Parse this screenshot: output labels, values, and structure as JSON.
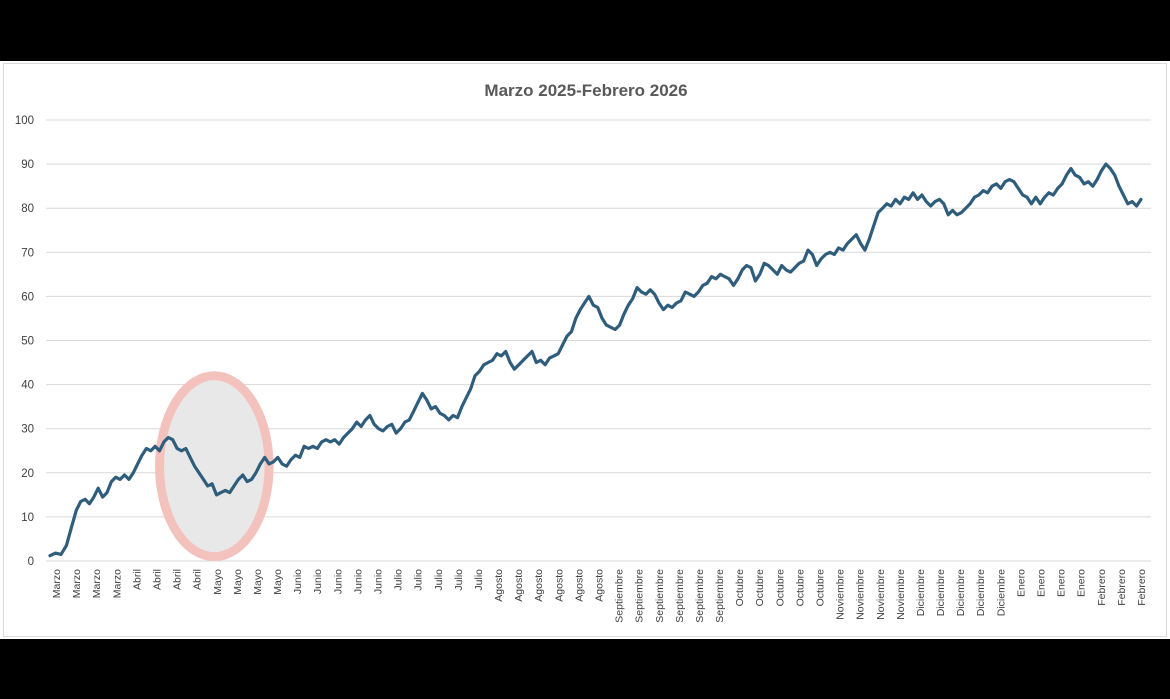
{
  "chart_data": {
    "type": "line",
    "title": "Marzo 2025-Febrero 2026",
    "xlabel": "",
    "ylabel": "",
    "ylim": [
      0,
      100
    ],
    "y_ticks": [
      0,
      10,
      20,
      30,
      40,
      50,
      60,
      70,
      80,
      90,
      100
    ],
    "grid": "horizontal",
    "legend": "none",
    "colors": {
      "line": "#2f5d7c",
      "grid": "#d9d9d9",
      "highlight_fill": "#e8e8e8",
      "highlight_stroke": "#f4c2bd"
    },
    "highlight": {
      "shape": "ellipse",
      "x_from": 5,
      "x_to": 10,
      "y_from": 1,
      "y_to": 42
    },
    "categories": [
      "Marzo",
      "Marzo",
      "Marzo",
      "Marzo",
      "Abril",
      "Abril",
      "Abril",
      "Abril",
      "Mayo",
      "Mayo",
      "Mayo",
      "Mayo",
      "Junio",
      "Junio",
      "Junio",
      "Junio",
      "Junio",
      "Julio",
      "Julio",
      "Julio",
      "Julio",
      "Julio",
      "Agosto",
      "Agosto",
      "Agosto",
      "Agosto",
      "Agosto",
      "Agosto",
      "Septiembre",
      "Septiembre",
      "Septiembre",
      "Septiembre",
      "Septiembre",
      "Septiembre",
      "Octubre",
      "Octubre",
      "Octubre",
      "Octubre",
      "Octubre",
      "Noviembre",
      "Noviembre",
      "Noviembre",
      "Noviembre",
      "Diciembre",
      "Diciembre",
      "Diciembre",
      "Diciembre",
      "Diciembre",
      "Enero",
      "Enero",
      "Enero",
      "Enero",
      "Febrero",
      "Febrero",
      "Febrero"
    ],
    "series": [
      {
        "points": [
          [
            0.0,
            1.2
          ],
          [
            0.25,
            1.8
          ],
          [
            0.5,
            1.5
          ],
          [
            0.75,
            3.5
          ],
          [
            1.0,
            8.0
          ],
          [
            1.2,
            11.5
          ],
          [
            1.4,
            13.5
          ],
          [
            1.6,
            14.0
          ],
          [
            1.8,
            13.0
          ],
          [
            2.0,
            14.5
          ],
          [
            2.2,
            16.5
          ],
          [
            2.4,
            14.5
          ],
          [
            2.6,
            15.5
          ],
          [
            2.8,
            18.0
          ],
          [
            3.0,
            19.0
          ],
          [
            3.2,
            18.5
          ],
          [
            3.4,
            19.5
          ],
          [
            3.6,
            18.5
          ],
          [
            3.8,
            20.0
          ],
          [
            4.0,
            22.0
          ],
          [
            4.2,
            24.0
          ],
          [
            4.4,
            25.5
          ],
          [
            4.6,
            25.0
          ],
          [
            4.8,
            26.0
          ],
          [
            5.0,
            25.0
          ],
          [
            5.2,
            27.0
          ],
          [
            5.4,
            28.0
          ],
          [
            5.6,
            27.5
          ],
          [
            5.8,
            25.5
          ],
          [
            6.0,
            25.0
          ],
          [
            6.2,
            25.5
          ],
          [
            6.4,
            23.5
          ],
          [
            6.6,
            21.5
          ],
          [
            6.8,
            20.0
          ],
          [
            7.0,
            18.5
          ],
          [
            7.2,
            17.0
          ],
          [
            7.4,
            17.5
          ],
          [
            7.6,
            15.0
          ],
          [
            7.8,
            15.5
          ],
          [
            8.0,
            16.0
          ],
          [
            8.2,
            15.5
          ],
          [
            8.4,
            17.0
          ],
          [
            8.6,
            18.5
          ],
          [
            8.8,
            19.5
          ],
          [
            9.0,
            18.0
          ],
          [
            9.2,
            18.5
          ],
          [
            9.4,
            20.0
          ],
          [
            9.6,
            22.0
          ],
          [
            9.8,
            23.5
          ],
          [
            10.0,
            22.0
          ],
          [
            10.2,
            22.5
          ],
          [
            10.4,
            23.5
          ],
          [
            10.6,
            22.0
          ],
          [
            10.8,
            21.5
          ],
          [
            11.0,
            23.0
          ],
          [
            11.2,
            24.0
          ],
          [
            11.4,
            23.5
          ],
          [
            11.6,
            26.0
          ],
          [
            11.8,
            25.5
          ],
          [
            12.0,
            26.0
          ],
          [
            12.2,
            25.5
          ],
          [
            12.4,
            27.0
          ],
          [
            12.6,
            27.5
          ],
          [
            12.8,
            27.0
          ],
          [
            13.0,
            27.5
          ],
          [
            13.2,
            26.5
          ],
          [
            13.4,
            28.0
          ],
          [
            13.6,
            29.0
          ],
          [
            13.8,
            30.0
          ],
          [
            14.0,
            31.5
          ],
          [
            14.2,
            30.5
          ],
          [
            14.4,
            32.0
          ],
          [
            14.6,
            33.0
          ],
          [
            14.8,
            31.0
          ],
          [
            15.0,
            30.0
          ],
          [
            15.2,
            29.5
          ],
          [
            15.4,
            30.5
          ],
          [
            15.6,
            31.0
          ],
          [
            15.8,
            29.0
          ],
          [
            16.0,
            30.0
          ],
          [
            16.2,
            31.5
          ],
          [
            16.4,
            32.0
          ],
          [
            16.6,
            34.0
          ],
          [
            16.8,
            36.0
          ],
          [
            17.0,
            38.0
          ],
          [
            17.2,
            36.5
          ],
          [
            17.4,
            34.5
          ],
          [
            17.6,
            35.0
          ],
          [
            17.8,
            33.5
          ],
          [
            18.0,
            33.0
          ],
          [
            18.2,
            32.0
          ],
          [
            18.4,
            33.0
          ],
          [
            18.6,
            32.5
          ],
          [
            18.8,
            35.0
          ],
          [
            19.0,
            37.0
          ],
          [
            19.2,
            39.0
          ],
          [
            19.4,
            42.0
          ],
          [
            19.6,
            43.0
          ],
          [
            19.8,
            44.5
          ],
          [
            20.0,
            45.0
          ],
          [
            20.2,
            45.5
          ],
          [
            20.4,
            47.0
          ],
          [
            20.6,
            46.5
          ],
          [
            20.8,
            47.5
          ],
          [
            21.0,
            45.0
          ],
          [
            21.2,
            43.5
          ],
          [
            21.4,
            44.5
          ],
          [
            21.6,
            45.5
          ],
          [
            21.8,
            46.5
          ],
          [
            22.0,
            47.5
          ],
          [
            22.2,
            45.0
          ],
          [
            22.4,
            45.5
          ],
          [
            22.6,
            44.5
          ],
          [
            22.8,
            46.0
          ],
          [
            23.0,
            46.5
          ],
          [
            23.2,
            47.0
          ],
          [
            23.4,
            49.0
          ],
          [
            23.6,
            51.0
          ],
          [
            23.8,
            52.0
          ],
          [
            24.0,
            55.0
          ],
          [
            24.2,
            57.0
          ],
          [
            24.4,
            58.5
          ],
          [
            24.6,
            60.0
          ],
          [
            24.8,
            58.0
          ],
          [
            25.0,
            57.5
          ],
          [
            25.2,
            55.0
          ],
          [
            25.4,
            53.5
          ],
          [
            25.6,
            53.0
          ],
          [
            25.8,
            52.5
          ],
          [
            26.0,
            53.5
          ],
          [
            26.2,
            56.0
          ],
          [
            26.4,
            58.0
          ],
          [
            26.6,
            59.5
          ],
          [
            26.8,
            62.0
          ],
          [
            27.0,
            61.0
          ],
          [
            27.2,
            60.5
          ],
          [
            27.4,
            61.5
          ],
          [
            27.6,
            60.5
          ],
          [
            27.8,
            58.5
          ],
          [
            28.0,
            57.0
          ],
          [
            28.2,
            58.0
          ],
          [
            28.4,
            57.5
          ],
          [
            28.6,
            58.5
          ],
          [
            28.8,
            59.0
          ],
          [
            29.0,
            61.0
          ],
          [
            29.2,
            60.5
          ],
          [
            29.4,
            60.0
          ],
          [
            29.6,
            61.0
          ],
          [
            29.8,
            62.5
          ],
          [
            30.0,
            63.0
          ],
          [
            30.2,
            64.5
          ],
          [
            30.4,
            64.0
          ],
          [
            30.6,
            65.0
          ],
          [
            30.8,
            64.5
          ],
          [
            31.0,
            64.0
          ],
          [
            31.2,
            62.5
          ],
          [
            31.4,
            64.0
          ],
          [
            31.6,
            66.0
          ],
          [
            31.8,
            67.0
          ],
          [
            32.0,
            66.5
          ],
          [
            32.2,
            63.5
          ],
          [
            32.4,
            65.0
          ],
          [
            32.6,
            67.5
          ],
          [
            32.8,
            67.0
          ],
          [
            33.0,
            66.0
          ],
          [
            33.2,
            65.0
          ],
          [
            33.4,
            67.0
          ],
          [
            33.6,
            66.0
          ],
          [
            33.8,
            65.5
          ],
          [
            34.0,
            66.5
          ],
          [
            34.2,
            67.5
          ],
          [
            34.4,
            68.0
          ],
          [
            34.6,
            70.5
          ],
          [
            34.8,
            69.5
          ],
          [
            35.0,
            67.0
          ],
          [
            35.2,
            68.5
          ],
          [
            35.4,
            69.5
          ],
          [
            35.6,
            70.0
          ],
          [
            35.8,
            69.5
          ],
          [
            36.0,
            71.0
          ],
          [
            36.2,
            70.5
          ],
          [
            36.4,
            72.0
          ],
          [
            36.6,
            73.0
          ],
          [
            36.8,
            74.0
          ],
          [
            37.0,
            72.0
          ],
          [
            37.2,
            70.5
          ],
          [
            37.4,
            73.0
          ],
          [
            37.6,
            76.0
          ],
          [
            37.8,
            79.0
          ],
          [
            38.0,
            80.0
          ],
          [
            38.2,
            81.0
          ],
          [
            38.4,
            80.5
          ],
          [
            38.6,
            82.0
          ],
          [
            38.8,
            81.0
          ],
          [
            39.0,
            82.5
          ],
          [
            39.2,
            82.0
          ],
          [
            39.4,
            83.5
          ],
          [
            39.6,
            82.0
          ],
          [
            39.8,
            83.0
          ],
          [
            40.0,
            81.5
          ],
          [
            40.2,
            80.5
          ],
          [
            40.4,
            81.5
          ],
          [
            40.6,
            82.0
          ],
          [
            40.8,
            81.0
          ],
          [
            41.0,
            78.5
          ],
          [
            41.2,
            79.5
          ],
          [
            41.4,
            78.5
          ],
          [
            41.6,
            79.0
          ],
          [
            41.8,
            80.0
          ],
          [
            42.0,
            81.0
          ],
          [
            42.2,
            82.5
          ],
          [
            42.4,
            83.0
          ],
          [
            42.6,
            84.0
          ],
          [
            42.8,
            83.5
          ],
          [
            43.0,
            85.0
          ],
          [
            43.2,
            85.5
          ],
          [
            43.4,
            84.5
          ],
          [
            43.6,
            86.0
          ],
          [
            43.8,
            86.5
          ],
          [
            44.0,
            86.0
          ],
          [
            44.2,
            84.5
          ],
          [
            44.4,
            83.0
          ],
          [
            44.6,
            82.5
          ],
          [
            44.8,
            81.0
          ],
          [
            45.0,
            82.5
          ],
          [
            45.2,
            81.0
          ],
          [
            45.4,
            82.5
          ],
          [
            45.6,
            83.5
          ],
          [
            45.8,
            83.0
          ],
          [
            46.0,
            84.5
          ],
          [
            46.2,
            85.5
          ],
          [
            46.4,
            87.5
          ],
          [
            46.6,
            89.0
          ],
          [
            46.8,
            87.5
          ],
          [
            47.0,
            87.0
          ],
          [
            47.2,
            85.5
          ],
          [
            47.4,
            86.0
          ],
          [
            47.6,
            85.0
          ],
          [
            47.8,
            86.5
          ],
          [
            48.0,
            88.5
          ],
          [
            48.2,
            90.0
          ],
          [
            48.4,
            89.0
          ],
          [
            48.6,
            87.5
          ],
          [
            48.8,
            85.0
          ],
          [
            49.0,
            83.0
          ],
          [
            49.2,
            81.0
          ],
          [
            49.4,
            81.5
          ],
          [
            49.6,
            80.5
          ],
          [
            49.8,
            82.0
          ]
        ]
      }
    ]
  }
}
